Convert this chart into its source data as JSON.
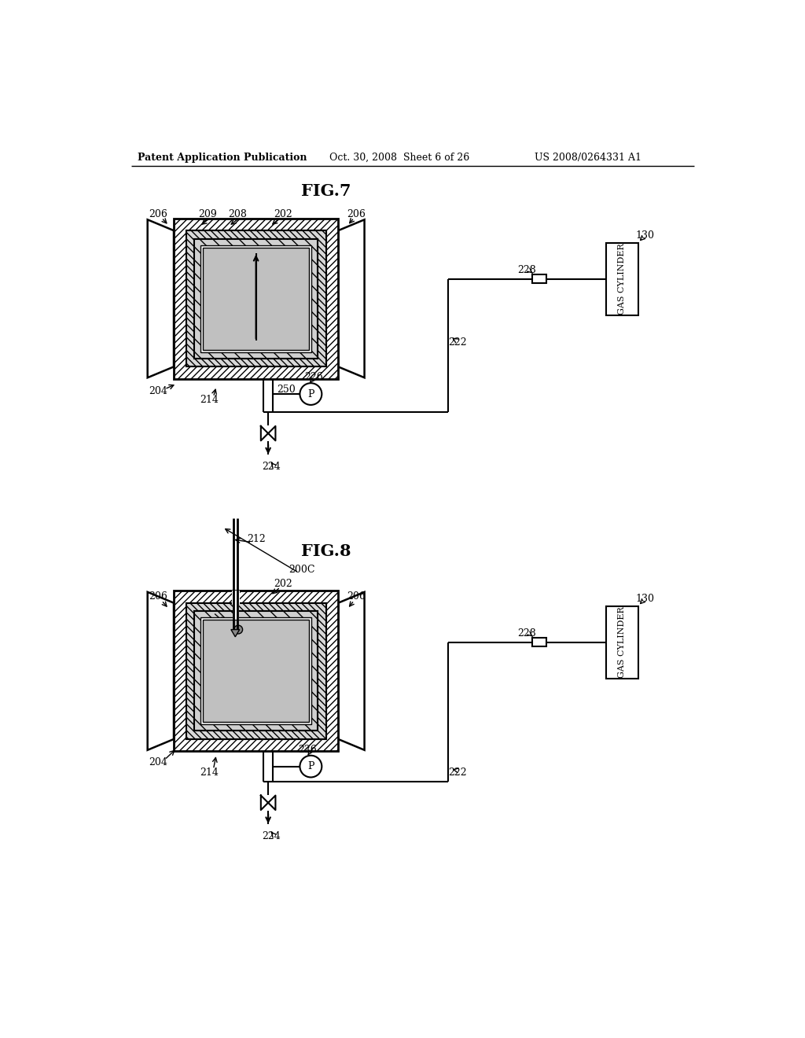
{
  "background_color": "#ffffff",
  "header_left": "Patent Application Publication",
  "header_center": "Oct. 30, 2008  Sheet 6 of 26",
  "header_right": "US 2008/0264331 A1",
  "fig7_title": "FIG.7",
  "fig8_title": "FIG.8"
}
